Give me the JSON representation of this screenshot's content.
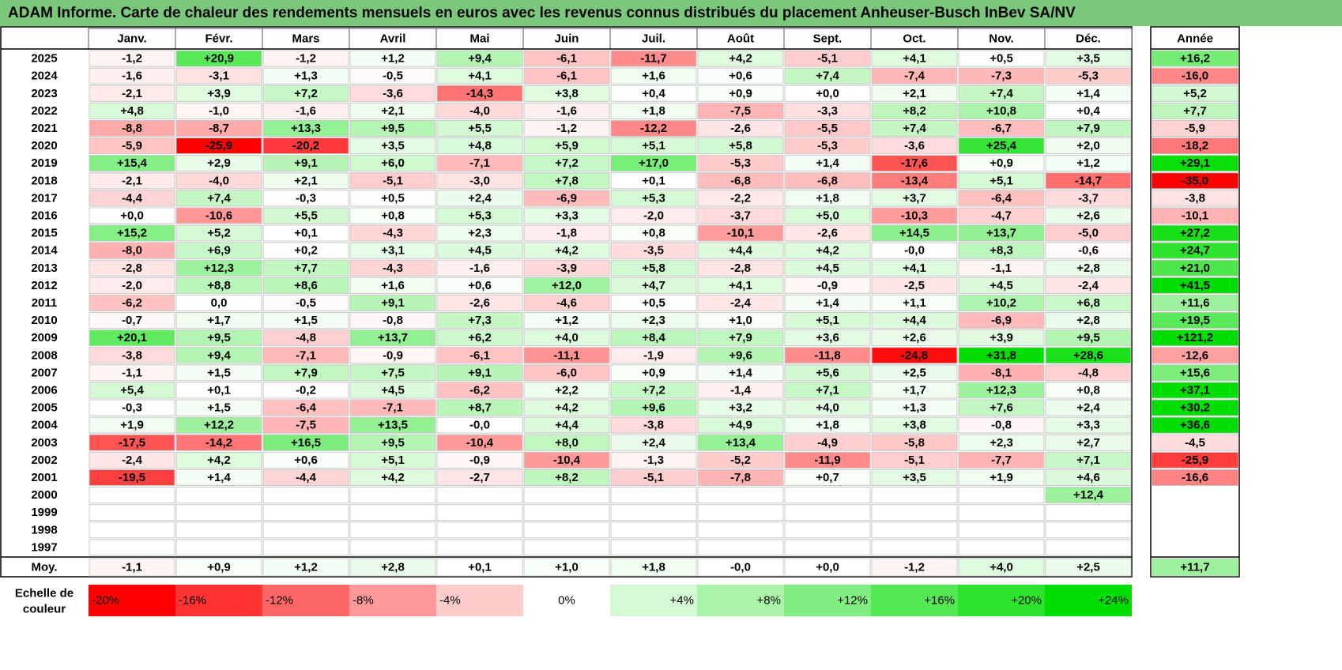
{
  "title": "ADAM Informe. Carte de chaleur des rendements mensuels en euros avec les revenus connus distribués du placement Anheuser-Busch InBev SA/NV",
  "chart_data": {
    "type": "heatmap",
    "columns": [
      "Janv.",
      "Févr.",
      "Mars",
      "Avril",
      "Mai",
      "Juin",
      "Juil.",
      "Août",
      "Sept.",
      "Oct.",
      "Nov.",
      "Déc."
    ],
    "year_header": "Année",
    "rows": [
      {
        "year": "2025",
        "months": [
          "-1,2",
          "+20,9",
          "-1,2",
          "+1,2",
          "+9,4",
          "-6,1",
          "-11,7",
          "+4,2",
          "-5,1",
          "+4,1",
          "+0,5",
          "+3,5"
        ],
        "annual": "+16,2"
      },
      {
        "year": "2024",
        "months": [
          "-1,6",
          "-3,1",
          "+1,3",
          "-0,5",
          "+4,1",
          "-6,1",
          "+1,6",
          "+0,6",
          "+7,4",
          "-7,4",
          "-7,3",
          "-5,3"
        ],
        "annual": "-16,0"
      },
      {
        "year": "2023",
        "months": [
          "-2,1",
          "+3,9",
          "+7,2",
          "-3,6",
          "-14,3",
          "+3,8",
          "+0,4",
          "+0,9",
          "+0,0",
          "+2,1",
          "+7,4",
          "+1,4"
        ],
        "annual": "+5,2"
      },
      {
        "year": "2022",
        "months": [
          "+4,8",
          "-1,0",
          "-1,6",
          "+2,1",
          "-4,0",
          "-1,6",
          "+1,8",
          "-7,5",
          "-3,3",
          "+8,2",
          "+10,8",
          "+0,4"
        ],
        "annual": "+7,7"
      },
      {
        "year": "2021",
        "months": [
          "-8,8",
          "-8,7",
          "+13,3",
          "+9,5",
          "+5,5",
          "-1,2",
          "-12,2",
          "-2,6",
          "-5,5",
          "+7,4",
          "-6,7",
          "+7,9"
        ],
        "annual": "-5,9"
      },
      {
        "year": "2020",
        "months": [
          "-5,9",
          "-25,9",
          "-20,2",
          "+3,5",
          "+4,8",
          "+5,9",
          "+5,1",
          "+5,8",
          "-5,3",
          "-3,6",
          "+25,4",
          "+2,0"
        ],
        "annual": "-18,2"
      },
      {
        "year": "2019",
        "months": [
          "+15,4",
          "+2,9",
          "+9,1",
          "+6,0",
          "-7,1",
          "+7,2",
          "+17,0",
          "-5,3",
          "+1,4",
          "-17,6",
          "+0,9",
          "+1,2"
        ],
        "annual": "+29,1"
      },
      {
        "year": "2018",
        "months": [
          "-2,1",
          "-4,0",
          "+2,1",
          "-5,1",
          "-3,0",
          "+7,8",
          "+0,1",
          "-6,8",
          "-6,8",
          "-13,4",
          "+5,1",
          "-14,7"
        ],
        "annual": "-35,0"
      },
      {
        "year": "2017",
        "months": [
          "-4,4",
          "+7,4",
          "-0,3",
          "+0,5",
          "+2,4",
          "-6,9",
          "+5,3",
          "-2,2",
          "+1,8",
          "+3,7",
          "-6,4",
          "-3,7"
        ],
        "annual": "-3,8"
      },
      {
        "year": "2016",
        "months": [
          "+0,0",
          "-10,6",
          "+5,5",
          "+0,8",
          "+5,3",
          "+3,3",
          "-2,0",
          "-3,7",
          "+5,0",
          "-10,3",
          "-4,7",
          "+2,6"
        ],
        "annual": "-10,1"
      },
      {
        "year": "2015",
        "months": [
          "+15,2",
          "+5,2",
          "+0,1",
          "-4,3",
          "+2,3",
          "-1,8",
          "+0,8",
          "-10,1",
          "-2,6",
          "+14,5",
          "+13,7",
          "-5,0"
        ],
        "annual": "+27,2"
      },
      {
        "year": "2014",
        "months": [
          "-8,0",
          "+6,9",
          "+0,2",
          "+3,1",
          "+4,5",
          "+4,2",
          "-3,5",
          "+4,4",
          "+4,2",
          "-0,0",
          "+8,3",
          "-0,6"
        ],
        "annual": "+24,7"
      },
      {
        "year": "2013",
        "months": [
          "-2,8",
          "+12,3",
          "+7,7",
          "-4,3",
          "-1,6",
          "-3,9",
          "+5,8",
          "-2,8",
          "+4,5",
          "+4,1",
          "-1,1",
          "+2,8"
        ],
        "annual": "+21,0"
      },
      {
        "year": "2012",
        "months": [
          "-2,0",
          "+8,8",
          "+8,6",
          "+1,6",
          "+0,6",
          "+12,0",
          "+4,7",
          "+4,1",
          "-0,9",
          "-2,5",
          "+4,5",
          "-2,4"
        ],
        "annual": "+41,5"
      },
      {
        "year": "2011",
        "months": [
          "-6,2",
          "0,0",
          "-0,5",
          "+9,1",
          "-2,6",
          "-4,6",
          "+0,5",
          "-2,4",
          "+1,4",
          "+1,1",
          "+10,2",
          "+6,8"
        ],
        "annual": "+11,6"
      },
      {
        "year": "2010",
        "months": [
          "-0,7",
          "+1,7",
          "+1,5",
          "-0,8",
          "+7,3",
          "+1,2",
          "+2,3",
          "+1,0",
          "+5,1",
          "+4,4",
          "-6,9",
          "+2,8"
        ],
        "annual": "+19,5"
      },
      {
        "year": "2009",
        "months": [
          "+20,1",
          "+9,5",
          "-4,8",
          "+13,7",
          "+6,2",
          "+4,0",
          "+8,4",
          "+7,9",
          "+3,6",
          "+2,6",
          "+3,9",
          "+9,5"
        ],
        "annual": "+121,2"
      },
      {
        "year": "2008",
        "months": [
          "-3,8",
          "+9,4",
          "-7,1",
          "-0,9",
          "-6,1",
          "-11,1",
          "-1,9",
          "+9,6",
          "-11,8",
          "-24,8",
          "+31,8",
          "+28,6"
        ],
        "annual": "-12,6"
      },
      {
        "year": "2007",
        "months": [
          "-1,1",
          "+1,5",
          "+7,9",
          "+7,5",
          "+9,1",
          "-6,0",
          "+0,9",
          "+1,4",
          "+5,6",
          "+2,5",
          "-8,1",
          "-4,8"
        ],
        "annual": "+15,6"
      },
      {
        "year": "2006",
        "months": [
          "+5,4",
          "+0,1",
          "-0,2",
          "+4,5",
          "-6,2",
          "+2,2",
          "+7,2",
          "-1,4",
          "+7,1",
          "+1,7",
          "+12,3",
          "+0,8"
        ],
        "annual": "+37,1"
      },
      {
        "year": "2005",
        "months": [
          "-0,3",
          "+1,5",
          "-6,4",
          "-7,1",
          "+8,7",
          "+4,2",
          "+9,6",
          "+3,2",
          "+4,0",
          "+1,3",
          "+7,6",
          "+2,4"
        ],
        "annual": "+30,2"
      },
      {
        "year": "2004",
        "months": [
          "+1,9",
          "+12,2",
          "-7,5",
          "+13,5",
          "-0,0",
          "+4,4",
          "-3,8",
          "+4,9",
          "+1,8",
          "+3,8",
          "-0,8",
          "+3,3"
        ],
        "annual": "+36,6"
      },
      {
        "year": "2003",
        "months": [
          "-17,5",
          "-14,2",
          "+16,5",
          "+9,5",
          "-10,4",
          "+8,0",
          "+2,4",
          "+13,4",
          "-4,9",
          "-5,8",
          "+2,3",
          "+2,7"
        ],
        "annual": "-4,5"
      },
      {
        "year": "2002",
        "months": [
          "-2,4",
          "+4,2",
          "+0,6",
          "+5,1",
          "-0,9",
          "-10,4",
          "-1,3",
          "-5,2",
          "-11,9",
          "-5,1",
          "-7,7",
          "+7,1"
        ],
        "annual": "-25,9"
      },
      {
        "year": "2001",
        "months": [
          "-19,5",
          "+1,4",
          "-4,4",
          "+4,2",
          "-2,7",
          "+8,2",
          "-5,1",
          "-7,8",
          "+0,7",
          "+3,5",
          "+1,9",
          "+4,6"
        ],
        "annual": "-16,6"
      },
      {
        "year": "2000",
        "months": [
          "",
          "",
          "",
          "",
          "",
          "",
          "",
          "",
          "",
          "",
          "",
          "+12,4"
        ],
        "annual": ""
      },
      {
        "year": "1999",
        "months": [
          "",
          "",
          "",
          "",
          "",
          "",
          "",
          "",
          "",
          "",
          "",
          ""
        ],
        "annual": ""
      },
      {
        "year": "1998",
        "months": [
          "",
          "",
          "",
          "",
          "",
          "",
          "",
          "",
          "",
          "",
          "",
          ""
        ],
        "annual": ""
      },
      {
        "year": "1997",
        "months": [
          "",
          "",
          "",
          "",
          "",
          "",
          "",
          "",
          "",
          "",
          "",
          ""
        ],
        "annual": ""
      }
    ],
    "average": {
      "label": "Moy.",
      "months": [
        "-1,1",
        "+0,9",
        "+1,2",
        "+2,8",
        "+0,1",
        "+1,0",
        "+1,8",
        "-0,0",
        "+0,0",
        "-1,2",
        "+4,0",
        "+2,5"
      ],
      "annual": "+11,7"
    },
    "scale": {
      "label_line1": "Echelle de",
      "label_line2": "couleur",
      "items": [
        "-20%",
        "-16%",
        "-12%",
        "-8%",
        "-4%",
        "0%",
        "+4%",
        "+8%",
        "+12%",
        "+16%",
        "+20%",
        "+24%"
      ],
      "values": [
        -20,
        -16,
        -12,
        -8,
        -4,
        0,
        4,
        8,
        12,
        16,
        20,
        24
      ]
    },
    "colors": {
      "negative": "#ff0000",
      "positive": "#00dd00",
      "neutral": "#ffffff",
      "title_bar": "#7ac87a"
    }
  }
}
